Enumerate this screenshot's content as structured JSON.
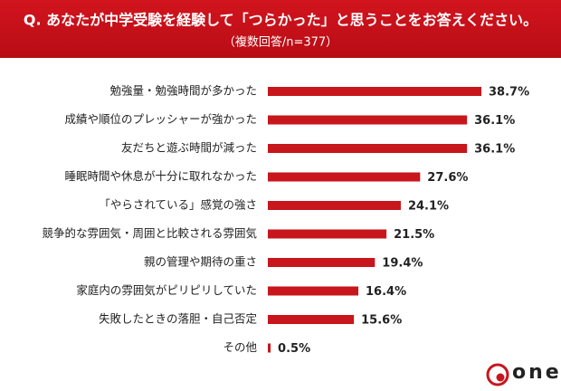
{
  "chart_data": {
    "type": "bar",
    "orientation": "horizontal",
    "title": "Q. あなたが中学受験を経験して「つらかった」と思うことをお答えください。",
    "subtitle": "（複数回答/n=377）",
    "categories": [
      "勉強量・勉強時間が多かった",
      "成績や順位のプレッシャーが強かった",
      "友だちと遊ぶ時間が減った",
      "睡眠時間や休息が十分に取れなかった",
      "「やらされている」感覚の強さ",
      "競争的な雰囲気・周囲と比較される雰囲気",
      "親の管理や期待の重さ",
      "家庭内の雰囲気がピリピリしていた",
      "失敗したときの落胆・自己否定",
      "その他"
    ],
    "values": [
      38.7,
      36.1,
      36.1,
      27.6,
      24.1,
      21.5,
      19.4,
      16.4,
      15.6,
      0.5
    ],
    "value_labels": [
      "38.7%",
      "36.1%",
      "36.1%",
      "27.6%",
      "24.1%",
      "21.5%",
      "19.4%",
      "16.4%",
      "15.6%",
      "0.5%"
    ],
    "color": "#c8161d",
    "logo": "one"
  }
}
